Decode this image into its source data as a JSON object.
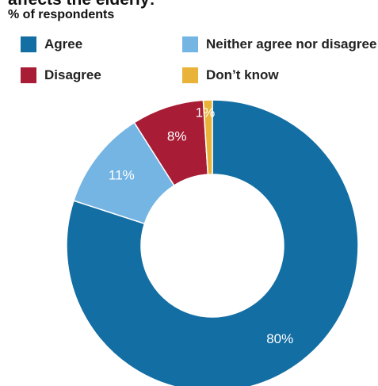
{
  "header": {
    "title": "affects the elderly:",
    "subtitle": "% of respondents"
  },
  "chart_data": {
    "type": "pie",
    "variant": "donut",
    "title": "affects the elderly:",
    "subtitle": "% of respondents",
    "unit": "%",
    "categories": [
      "Agree",
      "Neither agree nor disagree",
      "Disagree",
      "Don’t know"
    ],
    "values": [
      80,
      11,
      8,
      1
    ],
    "labels": [
      "80%",
      "11%",
      "8%",
      "1%"
    ],
    "colors": [
      "#136EA3",
      "#74B5E4",
      "#A81C35",
      "#E9B33A"
    ],
    "label_colors": [
      "#ffffff",
      "#ffffff",
      "#ffffff",
      "#ffffff"
    ],
    "legend_position": "top",
    "start_angle_deg": 0,
    "direction": "clockwise"
  }
}
